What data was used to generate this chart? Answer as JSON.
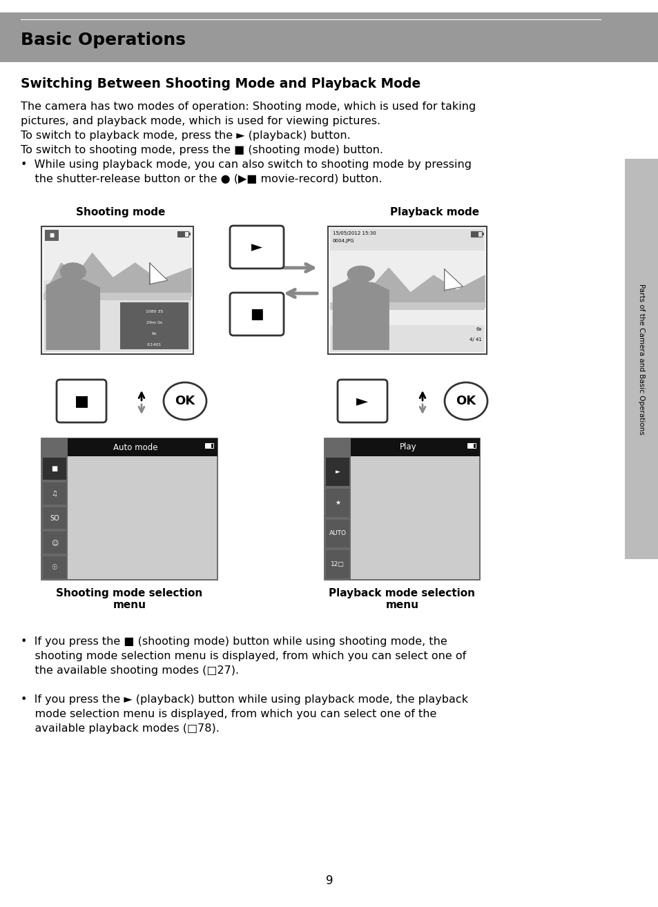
{
  "bg_color": "#ffffff",
  "header_bg": "#999999",
  "title": "Basic Operations",
  "section_title": "Switching Between Shooting Mode and Playback Mode",
  "body_line1": "The camera has two modes of operation: Shooting mode, which is used for taking",
  "body_line2": "pictures, and playback mode, which is used for viewing pictures.",
  "body_line3": "To switch to playback mode, press the ► (playback) button.",
  "body_line4": "To switch to shooting mode, press the ■ (shooting mode) button.",
  "body_line5a": "•  While using playback mode, you can also switch to shooting mode by pressing",
  "body_line5b": "    the shutter-release button or the ● (▶■ movie-record) button.",
  "caption_left_top": "Shooting mode",
  "caption_right_top": "Playback mode",
  "caption_left_bottom": "Shooting mode selection\nmenu",
  "caption_right_bottom": "Playback mode selection\nmenu",
  "bullet1a": "•  If you press the ■ (shooting mode) button while using shooting mode, the",
  "bullet1b": "    shooting mode selection menu is displayed, from which you can select one of",
  "bullet1c": "    the available shooting modes (□27).",
  "bullet2a": "•  If you press the ► (playback) button while using playback mode, the playback",
  "bullet2b": "    mode selection menu is displayed, from which you can select one of the",
  "bullet2c": "    available playback modes (□78).",
  "page_number": "9",
  "sidebar_text": "Parts of the Camera and Basic Operations",
  "arrow_gray": "#888888"
}
